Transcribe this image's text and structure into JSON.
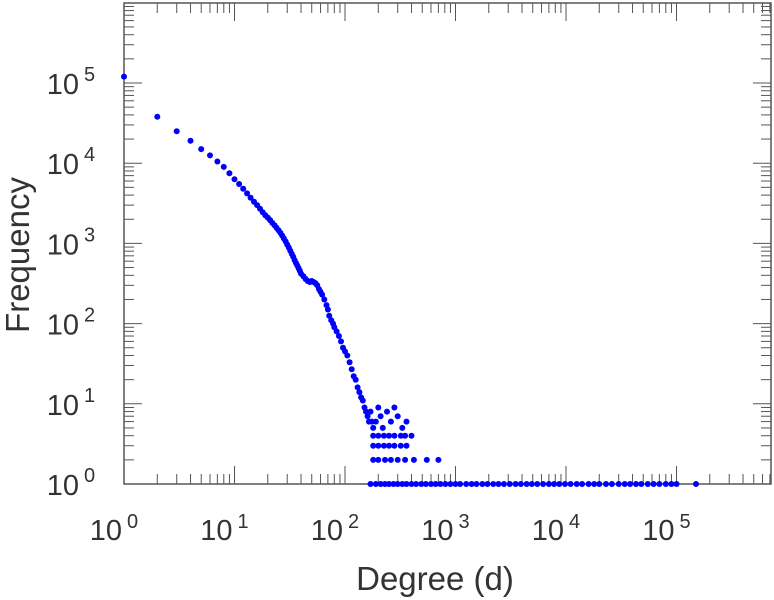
{
  "chart_data": {
    "type": "scatter",
    "xlabel": "Degree (d)",
    "ylabel": "Frequency",
    "x_scale": "log",
    "y_scale": "log",
    "xlim": [
      1,
      1000000
    ],
    "ylim": [
      1,
      1000000
    ],
    "x_ticks": [
      {
        "base": "10",
        "exp": "0",
        "value": 1
      },
      {
        "base": "10",
        "exp": "1",
        "value": 10
      },
      {
        "base": "10",
        "exp": "2",
        "value": 100
      },
      {
        "base": "10",
        "exp": "3",
        "value": 1000
      },
      {
        "base": "10",
        "exp": "4",
        "value": 10000
      },
      {
        "base": "10",
        "exp": "5",
        "value": 100000
      }
    ],
    "y_ticks": [
      {
        "base": "10",
        "exp": "0",
        "value": 1
      },
      {
        "base": "10",
        "exp": "1",
        "value": 10
      },
      {
        "base": "10",
        "exp": "2",
        "value": 100
      },
      {
        "base": "10",
        "exp": "3",
        "value": 1000
      },
      {
        "base": "10",
        "exp": "4",
        "value": 10000
      },
      {
        "base": "10",
        "exp": "5",
        "value": 100000
      }
    ],
    "grid": false,
    "marker_color": "#0000ff",
    "points": [
      [
        1,
        120000
      ],
      [
        2,
        38000
      ],
      [
        3,
        25000
      ],
      [
        4,
        19000
      ],
      [
        5,
        15000
      ],
      [
        6,
        12500
      ],
      [
        7,
        10500
      ],
      [
        8,
        9000
      ],
      [
        9,
        7500
      ],
      [
        10,
        6300
      ],
      [
        11,
        5500
      ],
      [
        12,
        4800
      ],
      [
        13,
        4200
      ],
      [
        14,
        3700
      ],
      [
        15,
        3300
      ],
      [
        16,
        3000
      ],
      [
        17,
        2700
      ],
      [
        18,
        2450
      ],
      [
        19,
        2250
      ],
      [
        20,
        2100
      ],
      [
        21,
        1950
      ],
      [
        22,
        1800
      ],
      [
        23,
        1680
      ],
      [
        24,
        1570
      ],
      [
        25,
        1460
      ],
      [
        26,
        1360
      ],
      [
        27,
        1250
      ],
      [
        28,
        1150
      ],
      [
        29,
        1060
      ],
      [
        30,
        970
      ],
      [
        31,
        890
      ],
      [
        32,
        810
      ],
      [
        33,
        740
      ],
      [
        34,
        680
      ],
      [
        35,
        620
      ],
      [
        36,
        570
      ],
      [
        37,
        530
      ],
      [
        38,
        490
      ],
      [
        39,
        455
      ],
      [
        40,
        420
      ],
      [
        42,
        390
      ],
      [
        44,
        360
      ],
      [
        46,
        340
      ],
      [
        48,
        330
      ],
      [
        50,
        340
      ],
      [
        52,
        330
      ],
      [
        54,
        320
      ],
      [
        56,
        300
      ],
      [
        58,
        270
      ],
      [
        60,
        250
      ],
      [
        62,
        230
      ],
      [
        65,
        200
      ],
      [
        68,
        170
      ],
      [
        70,
        150
      ],
      [
        72,
        125
      ],
      [
        75,
        110
      ],
      [
        78,
        100
      ],
      [
        80,
        90
      ],
      [
        84,
        80
      ],
      [
        88,
        70
      ],
      [
        92,
        60
      ],
      [
        96,
        50
      ],
      [
        100,
        45
      ],
      [
        105,
        40
      ],
      [
        110,
        33
      ],
      [
        115,
        27
      ],
      [
        120,
        22
      ],
      [
        125,
        20
      ],
      [
        130,
        16
      ],
      [
        135,
        14
      ],
      [
        140,
        12
      ],
      [
        145,
        11
      ],
      [
        150,
        9
      ],
      [
        155,
        8
      ],
      [
        160,
        7
      ],
      [
        165,
        6
      ],
      [
        170,
        8
      ],
      [
        175,
        6
      ],
      [
        180,
        5
      ],
      [
        190,
        6
      ],
      [
        200,
        9
      ],
      [
        210,
        7
      ],
      [
        220,
        5
      ],
      [
        240,
        8
      ],
      [
        260,
        6
      ],
      [
        280,
        9
      ],
      [
        300,
        7
      ],
      [
        330,
        5
      ],
      [
        360,
        6
      ],
      [
        180,
        4
      ],
      [
        200,
        4
      ],
      [
        225,
        4
      ],
      [
        250,
        4
      ],
      [
        280,
        4
      ],
      [
        320,
        4
      ],
      [
        350,
        4
      ],
      [
        400,
        4
      ],
      [
        180,
        3
      ],
      [
        200,
        3
      ],
      [
        225,
        3
      ],
      [
        250,
        3
      ],
      [
        280,
        3
      ],
      [
        320,
        3
      ],
      [
        360,
        3
      ],
      [
        180,
        2
      ],
      [
        200,
        2
      ],
      [
        230,
        2
      ],
      [
        260,
        2
      ],
      [
        300,
        2
      ],
      [
        350,
        2
      ],
      [
        420,
        2
      ],
      [
        550,
        2
      ],
      [
        700,
        2
      ],
      [
        170,
        1
      ],
      [
        190,
        1
      ],
      [
        210,
        1
      ],
      [
        230,
        1
      ],
      [
        250,
        1
      ],
      [
        275,
        1
      ],
      [
        300,
        1
      ],
      [
        330,
        1
      ],
      [
        360,
        1
      ],
      [
        400,
        1
      ],
      [
        440,
        1
      ],
      [
        490,
        1
      ],
      [
        540,
        1
      ],
      [
        600,
        1
      ],
      [
        660,
        1
      ],
      [
        730,
        1
      ],
      [
        810,
        1
      ],
      [
        900,
        1
      ],
      [
        1000,
        1
      ],
      [
        1100,
        1
      ],
      [
        1250,
        1
      ],
      [
        1400,
        1
      ],
      [
        1550,
        1
      ],
      [
        1750,
        1
      ],
      [
        1950,
        1
      ],
      [
        2200,
        1
      ],
      [
        2450,
        1
      ],
      [
        2750,
        1
      ],
      [
        3100,
        1
      ],
      [
        3500,
        1
      ],
      [
        3900,
        1
      ],
      [
        4400,
        1
      ],
      [
        4900,
        1
      ],
      [
        5500,
        1
      ],
      [
        6200,
        1
      ],
      [
        7000,
        1
      ],
      [
        7800,
        1
      ],
      [
        8700,
        1
      ],
      [
        9800,
        1
      ],
      [
        11000,
        1
      ],
      [
        12500,
        1
      ],
      [
        14000,
        1
      ],
      [
        16000,
        1
      ],
      [
        18000,
        1
      ],
      [
        20000,
        1
      ],
      [
        23000,
        1
      ],
      [
        26000,
        1
      ],
      [
        30000,
        1
      ],
      [
        34000,
        1
      ],
      [
        38000,
        1
      ],
      [
        43000,
        1
      ],
      [
        48000,
        1
      ],
      [
        55000,
        1
      ],
      [
        62000,
        1
      ],
      [
        70000,
        1
      ],
      [
        80000,
        1
      ],
      [
        90000,
        1
      ],
      [
        100000,
        1
      ],
      [
        150000,
        1
      ]
    ]
  }
}
